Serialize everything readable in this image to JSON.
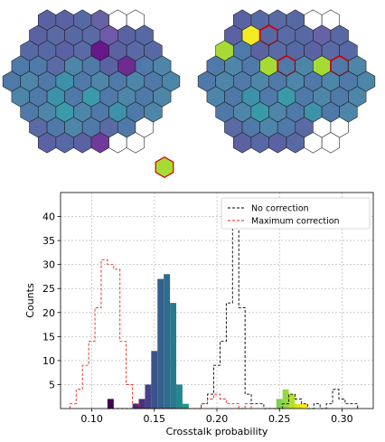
{
  "colors": {
    "hex_border": "#222222",
    "hex_highlight_border": "#cc0000",
    "no_correction": "#000000",
    "maximum_correction": "#e8221f",
    "grid": "#b0b0b0"
  },
  "chart_data": [
    {
      "type": "heatmap",
      "layout": "hexagonal-array",
      "rows": [
        6,
        7,
        8,
        9,
        10,
        9,
        8,
        7,
        6
      ],
      "corner_cells": [
        "#f5ea26",
        "#a6db35",
        "#a6db35",
        null
      ],
      "cell_colors": [
        "#5b62a3",
        "#5b62a3",
        "#5769a5",
        "#6761a6",
        "#ffffff",
        "#ffffff",
        "#5b62a3",
        "#5a6aa5",
        "#5769a5",
        "#5a6aa5",
        "#6f5aa8",
        "#5b62a3",
        "#5769a5",
        "#5769a5",
        "#5769a5",
        "#5b62a3",
        "#5a6aa5",
        "#67168b",
        "#5b62a3",
        "#5a6aa5",
        "#5769a5",
        "#4f79a8",
        "#4f79a8",
        "#5a6aa5",
        "#4d86a9",
        "#4f79a8",
        "#5b62a3",
        "#6d2c90",
        "#4f79a8",
        "#4d86a9",
        "#4f79a8",
        "#4d86a9",
        "#4f79a8",
        "#3d91a9",
        "#4f79a8",
        "#4d86a9",
        "#4f79a8",
        "#4d86a9",
        "#4f79a8",
        "#4d86a9",
        "#4d86a9",
        "#4f79a8",
        "#3d91a9",
        "#4f79a8",
        "#3b9aaa",
        "#4f79a8",
        "#4d86a9",
        "#4f79a8",
        "#4d86a9",
        "#4f79a8",
        "#4d86a9",
        "#3b9aaa",
        "#4d86a9",
        "#4f79a8",
        "#3d91a9",
        "#4f79a8",
        "#4d86a9",
        "#5a6aa5",
        "#4f79a8",
        "#4d86a9",
        "#4f79a8",
        "#5a6aa5",
        "#4f79a8",
        "#ffffff",
        "#5b62a3",
        "#5769a5",
        "#5b62a3",
        "#6f3a9a",
        "#ffffff",
        "#ffffff"
      ]
    },
    {
      "type": "heatmap",
      "layout": "hexagonal-array",
      "rows": [
        6,
        7,
        8,
        9,
        10,
        9,
        8,
        7,
        6
      ],
      "corner_cells": [
        "#a6db35",
        "#a6db35",
        "#a6db35",
        null
      ],
      "highlighted_cells": [
        8,
        25,
        28
      ],
      "cell_colors": [
        "#5b62a3",
        "#5769a5",
        "#5a6aa5",
        "#5769a5",
        "#ffffff",
        "#ffffff",
        "#5b62a3",
        "#f5ea26",
        "#5769a5",
        "#5a6aa5",
        "#5769a5",
        "#6761a6",
        "#5769a5",
        "#a6db35",
        "#4f79a8",
        "#5b62a3",
        "#5a6aa5",
        "#5769a5",
        "#5b62a3",
        "#5a6aa5",
        "#5769a5",
        "#4f79a8",
        "#4d86a9",
        "#4f79a8",
        "#a6db35",
        "#4f79a8",
        "#4d86a9",
        "#a6db35",
        "#4f79a8",
        "#4d86a9",
        "#4f79a8",
        "#4d86a9",
        "#4f79a8",
        "#4d86a9",
        "#4f79a8",
        "#4d86a9",
        "#4f79a8",
        "#4d86a9",
        "#4f79a8",
        "#4d86a9",
        "#4d86a9",
        "#4f79a8",
        "#3d91a9",
        "#4f79a8",
        "#3b9aaa",
        "#4f79a8",
        "#4d86a9",
        "#4f79a8",
        "#4d86a9",
        "#4f79a8",
        "#4d86a9",
        "#3b9aaa",
        "#4d86a9",
        "#4f79a8",
        "#3d91a9",
        "#4f79a8",
        "#4d86a9",
        "#5a6aa5",
        "#4f79a8",
        "#4d86a9",
        "#4f79a8",
        "#5a6aa5",
        "#ffffff",
        "#ffffff",
        "#5b62a3",
        "#5769a5",
        "#5b62a3",
        "#5769a5",
        "#ffffff",
        "#ffffff"
      ]
    },
    {
      "type": "bar",
      "subtype": "histogram",
      "xlabel": "Crosstalk probability",
      "ylabel": "Counts",
      "xlim": [
        0.075,
        0.325
      ],
      "ylim": [
        0,
        45
      ],
      "xticks": [
        0.1,
        0.15,
        0.2,
        0.25,
        0.3
      ],
      "xtick_labels": [
        "0.10",
        "0.15",
        "0.20",
        "0.25",
        "0.30"
      ],
      "yticks": [
        5,
        10,
        15,
        20,
        25,
        30,
        35,
        40
      ],
      "ytick_labels": [
        "5",
        "10",
        "15",
        "20",
        "25",
        "30",
        "35",
        "40"
      ],
      "grid": true,
      "legend_position": "top-right",
      "filled_bars": [
        {
          "x0": 0.1125,
          "x1": 0.1175,
          "count": 2,
          "color": "#440154"
        },
        {
          "x0": 0.1325,
          "x1": 0.1375,
          "count": 1,
          "color": "#472c7a"
        },
        {
          "x0": 0.1375,
          "x1": 0.1425,
          "count": 2,
          "color": "#463480"
        },
        {
          "x0": 0.1425,
          "x1": 0.1475,
          "count": 5,
          "color": "#414487"
        },
        {
          "x0": 0.1475,
          "x1": 0.1525,
          "count": 12,
          "color": "#3b528b"
        },
        {
          "x0": 0.1525,
          "x1": 0.1575,
          "count": 27,
          "color": "#355f8d"
        },
        {
          "x0": 0.1575,
          "x1": 0.1625,
          "count": 28,
          "color": "#2f6c8e"
        },
        {
          "x0": 0.1625,
          "x1": 0.1675,
          "count": 22,
          "color": "#2a788e"
        },
        {
          "x0": 0.1675,
          "x1": 0.1725,
          "count": 5,
          "color": "#23888e"
        },
        {
          "x0": 0.1725,
          "x1": 0.1775,
          "count": 1,
          "color": "#1f988b"
        },
        {
          "x0": 0.2475,
          "x1": 0.2525,
          "count": 2,
          "color": "#7ad151"
        },
        {
          "x0": 0.2525,
          "x1": 0.2575,
          "count": 4,
          "color": "#95d840"
        },
        {
          "x0": 0.2575,
          "x1": 0.2625,
          "count": 3,
          "color": "#b5de2b"
        },
        {
          "x0": 0.2625,
          "x1": 0.2675,
          "count": 1,
          "color": "#dde318"
        },
        {
          "x0": 0.2675,
          "x1": 0.2725,
          "count": 1,
          "color": "#fde725"
        }
      ],
      "series": [
        {
          "name": "No correction",
          "line_style": "dashed",
          "color": "#000000",
          "bin_edges": [
            0.1125,
            0.1175,
            0.1225,
            0.1275,
            0.1325,
            0.1375,
            0.1425,
            0.1475,
            0.1525,
            0.1575,
            0.1625,
            0.1675,
            0.1725,
            0.1775,
            0.1825,
            0.1875,
            0.1925,
            0.1975,
            0.2025,
            0.2075,
            0.2125,
            0.2175,
            0.2225,
            0.2275,
            0.2325,
            0.2375,
            0.2425,
            0.2475,
            0.2525,
            0.2575,
            0.2625,
            0.2675,
            0.2725,
            0.2775,
            0.2825,
            0.2875,
            0.2925,
            0.2975,
            0.3025,
            0.3075,
            0.3125
          ],
          "counts": [
            0,
            0,
            0,
            0,
            0,
            0,
            0,
            0,
            0,
            0,
            0,
            0,
            0,
            0,
            0,
            1,
            3,
            9,
            14,
            22,
            43,
            21,
            3,
            1,
            1,
            0,
            0,
            0,
            1,
            3,
            2,
            1,
            0,
            1,
            0,
            1,
            4,
            2,
            1,
            1
          ]
        },
        {
          "name": "Maximum correction",
          "line_style": "dashed",
          "color": "#e8221f",
          "bin_edges": [
            0.0825,
            0.0875,
            0.0925,
            0.0975,
            0.1025,
            0.1075,
            0.1125,
            0.1175,
            0.1225,
            0.1275,
            0.1325,
            0.1375,
            0.1425,
            0.1475,
            0.1525,
            0.1575,
            0.1625,
            0.1675,
            0.1725,
            0.1775,
            0.1825,
            0.1875,
            0.1925,
            0.1975,
            0.2025,
            0.2075,
            0.2125,
            0.2175,
            0.2225,
            0.2275
          ],
          "counts": [
            1,
            4,
            9,
            14,
            21,
            31,
            30,
            29,
            14,
            5,
            1,
            0,
            0,
            0,
            0,
            0,
            0,
            0,
            0,
            0,
            0,
            1,
            2,
            3,
            2,
            1,
            1,
            0,
            1
          ]
        }
      ]
    }
  ]
}
